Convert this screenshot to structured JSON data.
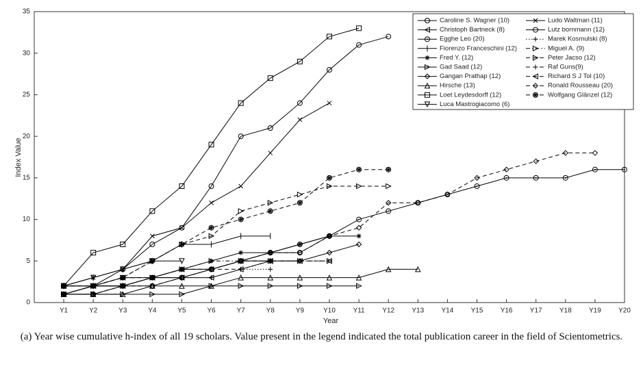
{
  "chart_data": {
    "type": "line",
    "x_label": "Year",
    "y_label": "Index Value",
    "caption": "(a) Year wise cumulative h-index of all 19 scholars. Value present in the legend indicated the total publication career in the field of Scientometrics.",
    "categories": [
      "Y1",
      "Y2",
      "Y3",
      "Y4",
      "Y5",
      "Y6",
      "Y7",
      "Y8",
      "Y9",
      "Y10",
      "Y11",
      "Y12",
      "Y13",
      "Y14",
      "Y15",
      "Y16",
      "Y17",
      "Y18",
      "Y19",
      "Y20"
    ],
    "ylim": [
      0,
      35
    ],
    "yticks": [
      0,
      5,
      10,
      15,
      20,
      25,
      30,
      35
    ],
    "legend": "upper right",
    "series": [
      {
        "name": "Caroline S. Wagner (10)",
        "color": "#000",
        "marker": "circle",
        "dash": "solid",
        "values": [
          1,
          1,
          2,
          2,
          3,
          4,
          5,
          6,
          6,
          8,
          null,
          null,
          null,
          null,
          null,
          null,
          null,
          null,
          null,
          null
        ]
      },
      {
        "name": "Christoph Bartneck (8)",
        "color": "#000",
        "marker": "tri-left",
        "dash": "solid",
        "values": [
          1,
          2,
          2,
          3,
          3,
          3,
          4,
          5,
          null,
          null,
          null,
          null,
          null,
          null,
          null,
          null,
          null,
          null,
          null,
          null
        ]
      },
      {
        "name": "Egghe Leo (20)",
        "color": "#000",
        "marker": "circle-dot",
        "dash": "solid",
        "values": [
          1,
          2,
          2,
          3,
          3,
          4,
          5,
          6,
          7,
          8,
          10,
          11,
          12,
          13,
          14,
          15,
          15,
          15,
          16,
          16
        ]
      },
      {
        "name": "Fiorenzo  Franceschini (12)",
        "color": "#000",
        "marker": "bar",
        "dash": "solid",
        "values": [
          2,
          3,
          4,
          5,
          7,
          7,
          8,
          8,
          null,
          null,
          null,
          null,
          null,
          null,
          null,
          null,
          null,
          null,
          null,
          null
        ]
      },
      {
        "name": "Fred Y. (12)",
        "color": "#000",
        "marker": "star",
        "dash": "solid",
        "values": [
          1,
          2,
          3,
          3,
          4,
          5,
          6,
          6,
          7,
          8,
          8,
          null,
          null,
          null,
          null,
          null,
          null,
          null,
          null,
          null
        ]
      },
      {
        "name": "Gad Saad (12)",
        "color": "#000",
        "marker": "tri-right",
        "dash": "solid",
        "values": [
          1,
          1,
          1,
          1,
          1,
          2,
          2,
          2,
          2,
          2,
          2,
          null,
          null,
          null,
          null,
          null,
          null,
          null,
          null,
          null
        ]
      },
      {
        "name": "Gangan Prathap (12)",
        "color": "#000",
        "marker": "diamond",
        "dash": "solid",
        "values": [
          2,
          2,
          2,
          3,
          4,
          4,
          5,
          5,
          5,
          6,
          7,
          null,
          null,
          null,
          null,
          null,
          null,
          null,
          null,
          null
        ]
      },
      {
        "name": "Hirsche (13)",
        "color": "#000",
        "marker": "tri-up",
        "dash": "solid",
        "values": [
          1,
          1,
          1,
          2,
          2,
          2,
          3,
          3,
          3,
          3,
          3,
          4,
          4,
          null,
          null,
          null,
          null,
          null,
          null,
          null
        ]
      },
      {
        "name": "Loet Leydesdorff (12)",
        "color": "#000",
        "marker": "square",
        "dash": "solid",
        "values": [
          2,
          6,
          7,
          11,
          14,
          19,
          24,
          27,
          29,
          32,
          33,
          null,
          null,
          null,
          null,
          null,
          null,
          null,
          null,
          null
        ]
      },
      {
        "name": "Luca  Mastrogiacomo (6)",
        "color": "#000",
        "marker": "tri-down",
        "dash": "solid",
        "values": [
          2,
          3,
          4,
          5,
          5,
          null,
          null,
          null,
          null,
          null,
          null,
          null,
          null,
          null,
          null,
          null,
          null,
          null,
          null,
          null
        ]
      },
      {
        "name": "Ludo Waltman (11)",
        "color": "#000",
        "marker": "x",
        "dash": "solid",
        "values": [
          2,
          3,
          4,
          8,
          9,
          12,
          14,
          18,
          22,
          24,
          null,
          null,
          null,
          null,
          null,
          null,
          null,
          null,
          null,
          null
        ]
      },
      {
        "name": "Lutz bornmann (12)",
        "color": "#000",
        "marker": "circle",
        "dash": "solid",
        "values": [
          2,
          2,
          4,
          7,
          9,
          14,
          20,
          21,
          24,
          28,
          31,
          32,
          null,
          null,
          null,
          null,
          null,
          null,
          null,
          null
        ]
      },
      {
        "name": "Marek Kosmulski (8)",
        "color": "#000",
        "marker": "plus",
        "dash": "dotted",
        "values": [
          1,
          1,
          2,
          3,
          3,
          3,
          4,
          4,
          null,
          null,
          null,
          null,
          null,
          null,
          null,
          null,
          null,
          null,
          null,
          null
        ]
      },
      {
        "name": "Miguel A. (9)",
        "color": "#000",
        "marker": "tri-right",
        "dash": "dashdot",
        "values": [
          1,
          2,
          2,
          3,
          4,
          5,
          5,
          5,
          5,
          5,
          null,
          null,
          null,
          null,
          null,
          null,
          null,
          null,
          null,
          null
        ]
      },
      {
        "name": "Peter Jacso (12)",
        "color": "#000",
        "marker": "tri-right",
        "dash": "dashed",
        "values": [
          1,
          2,
          3,
          5,
          7,
          8,
          11,
          12,
          13,
          14,
          14,
          14,
          null,
          null,
          null,
          null,
          null,
          null,
          null,
          null
        ]
      },
      {
        "name": "Raf Guns(9)",
        "color": "#000",
        "marker": "plus",
        "dash": "dashed",
        "values": [
          1,
          2,
          3,
          3,
          4,
          4,
          4,
          5,
          null,
          null,
          null,
          null,
          null,
          null,
          null,
          null,
          null,
          null,
          null,
          null
        ]
      },
      {
        "name": "Richard S J Tol (10)",
        "color": "#000",
        "marker": "tri-left",
        "dash": "dashed",
        "values": [
          2,
          2,
          3,
          3,
          4,
          4,
          5,
          5,
          5,
          5,
          null,
          null,
          null,
          null,
          null,
          null,
          null,
          null,
          null,
          null
        ]
      },
      {
        "name": "Ronald Rousseau (20)",
        "color": "#000",
        "marker": "diamond",
        "dash": "dashed",
        "values": [
          1,
          1,
          2,
          2,
          3,
          4,
          5,
          6,
          6,
          8,
          9,
          12,
          12,
          13,
          15,
          16,
          17,
          18,
          18,
          null
        ]
      },
      {
        "name": "Wolfgang Glänzel (12)",
        "color": "#000",
        "marker": "circle-star",
        "dash": "dashed",
        "values": [
          2,
          2,
          3,
          5,
          7,
          9,
          10,
          11,
          12,
          15,
          16,
          16,
          null,
          null,
          null,
          null,
          null,
          null,
          null,
          null
        ]
      }
    ]
  }
}
